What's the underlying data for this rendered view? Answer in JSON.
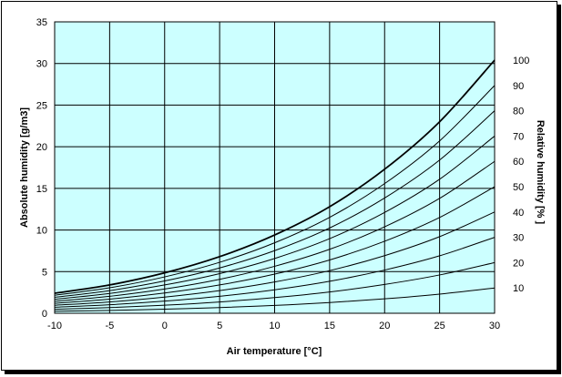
{
  "chart_data": {
    "type": "line",
    "xlabel": "Air temperature [°C]",
    "ylabel": "Absolute humidity [g/m3]",
    "y2label": "Relative humidity [% ]",
    "xlim": [
      -10,
      30
    ],
    "ylim": [
      0,
      35
    ],
    "xticks": [
      "-10",
      "-5",
      "0",
      "5",
      "10",
      "15",
      "20",
      "25",
      "30"
    ],
    "yticks": [
      "0",
      "5",
      "10",
      "15",
      "20",
      "25",
      "30",
      "35"
    ],
    "grid": true,
    "plot_background": "#ccffff",
    "line_color": "#000000",
    "x": [
      -10,
      -5,
      0,
      5,
      10,
      15,
      20,
      25,
      30
    ],
    "series": [
      {
        "name": "100",
        "values": [
          2.4,
          3.4,
          4.85,
          6.8,
          9.4,
          12.8,
          17.3,
          23.0,
          30.4
        ]
      },
      {
        "name": "90",
        "values": [
          2.16,
          3.06,
          4.37,
          6.12,
          8.46,
          11.52,
          15.57,
          20.7,
          27.36
        ]
      },
      {
        "name": "80",
        "values": [
          1.92,
          2.72,
          3.88,
          5.44,
          7.52,
          10.24,
          13.84,
          18.4,
          24.32
        ]
      },
      {
        "name": "70",
        "values": [
          1.68,
          2.38,
          3.4,
          4.76,
          6.58,
          8.96,
          12.11,
          16.1,
          21.28
        ]
      },
      {
        "name": "60",
        "values": [
          1.44,
          2.04,
          2.91,
          4.08,
          5.64,
          7.68,
          10.38,
          13.8,
          18.24
        ]
      },
      {
        "name": "50",
        "values": [
          1.2,
          1.7,
          2.43,
          3.4,
          4.7,
          6.4,
          8.65,
          11.5,
          15.2
        ]
      },
      {
        "name": "40",
        "values": [
          0.96,
          1.36,
          1.94,
          2.72,
          3.76,
          5.12,
          6.92,
          9.2,
          12.16
        ]
      },
      {
        "name": "30",
        "values": [
          0.72,
          1.02,
          1.46,
          2.04,
          2.82,
          3.84,
          5.19,
          6.9,
          9.12
        ]
      },
      {
        "name": "20",
        "values": [
          0.48,
          0.68,
          0.97,
          1.36,
          1.88,
          2.56,
          3.46,
          4.6,
          6.08
        ]
      },
      {
        "name": "10",
        "values": [
          0.24,
          0.34,
          0.49,
          0.68,
          0.94,
          1.28,
          1.73,
          2.3,
          3.04
        ]
      }
    ]
  }
}
